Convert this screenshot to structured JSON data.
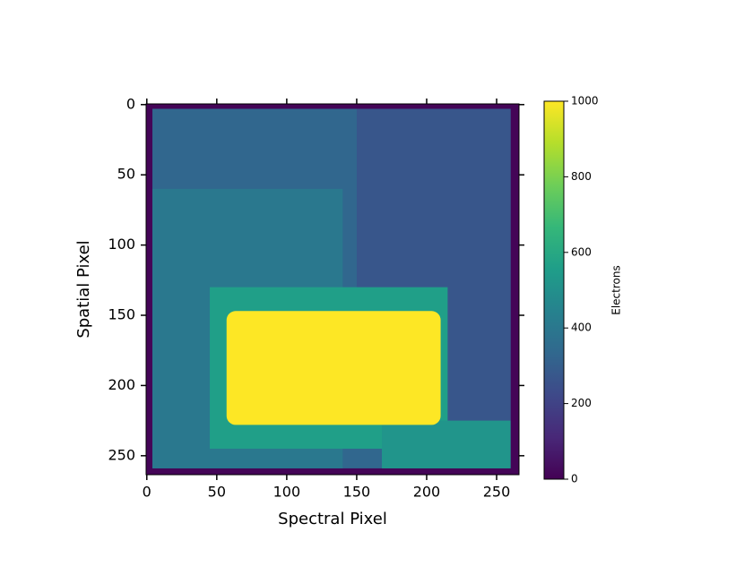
{
  "chart_data": {
    "type": "heatmap",
    "xlabel": "Spectral Pixel",
    "ylabel": "Spatial Pixel",
    "colorbar_label": "Electrons",
    "colormap": "viridis",
    "clim": [
      0,
      1000
    ],
    "xlim": [
      -0.5,
      266
    ],
    "ylim": [
      263.5,
      -0.5
    ],
    "xticks": [
      0,
      50,
      100,
      150,
      200,
      250
    ],
    "yticks": [
      0,
      50,
      100,
      150,
      200,
      250
    ],
    "colorbar_ticks": [
      0,
      200,
      400,
      600,
      800,
      1000
    ],
    "regions": [
      {
        "x": [
          -0.5,
          266
        ],
        "y": [
          -0.5,
          263.5
        ],
        "value": 10
      },
      {
        "x": [
          4,
          260
        ],
        "y": [
          3,
          259
        ],
        "value": 330
      },
      {
        "x": [
          4,
          140
        ],
        "y": [
          60,
          259
        ],
        "value": 400
      },
      {
        "x": [
          150,
          260
        ],
        "y": [
          3,
          225
        ],
        "value": 270
      },
      {
        "x": [
          45,
          215
        ],
        "y": [
          130,
          245
        ],
        "value": 560
      },
      {
        "x": [
          168,
          260
        ],
        "y": [
          225,
          259
        ],
        "value": 520
      },
      {
        "x": [
          57,
          210
        ],
        "y": [
          147,
          228
        ],
        "value": 1000
      }
    ]
  }
}
